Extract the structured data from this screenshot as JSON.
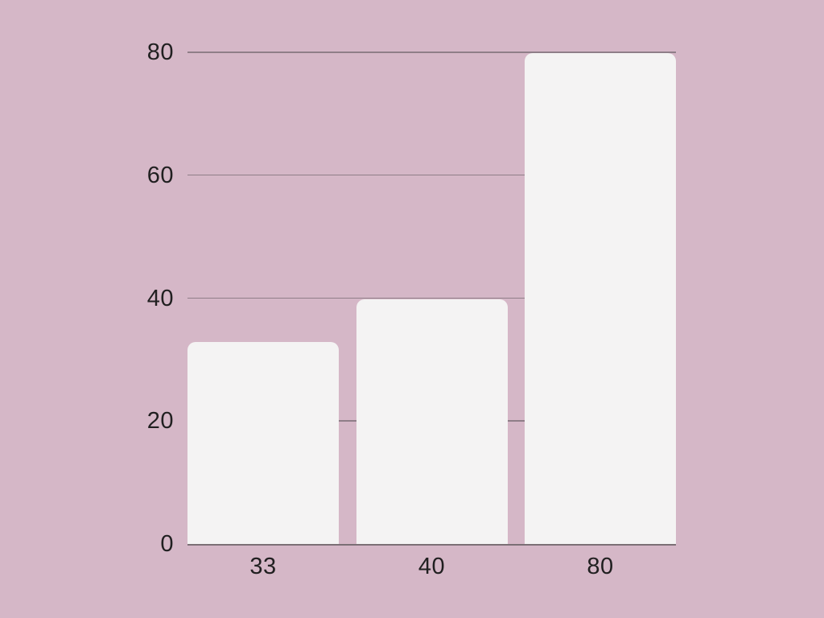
{
  "chart_data": {
    "type": "bar",
    "categories": [
      "33",
      "40",
      "80"
    ],
    "values": [
      33,
      40,
      80
    ],
    "series_count": 1,
    "title": "",
    "xlabel": "",
    "ylabel": "",
    "ylim": [
      0,
      80
    ],
    "yticks": [
      0,
      20,
      40,
      60,
      80
    ],
    "grid": "horizontal-only",
    "legend": "none",
    "bar_corner_style": "rounded-top",
    "colors": {
      "background": "#d5b7c7",
      "bar": "#f4f3f3",
      "gridline": "#8f7e88",
      "axis_line": "#7b6f75",
      "text": "#212021"
    }
  }
}
